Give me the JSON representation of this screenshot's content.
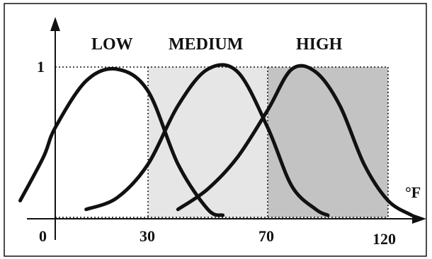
{
  "chart_data": {
    "type": "line",
    "title": "",
    "xlabel": "",
    "ylabel": "",
    "x_unit": "°F",
    "x_ticks": [
      "0",
      "30",
      "70",
      "120"
    ],
    "y_ticks": [
      "1"
    ],
    "category_labels": [
      "LOW",
      "MEDIUM",
      "HIGH"
    ],
    "region_boundaries": [
      30,
      70,
      120
    ],
    "series": [
      {
        "x": [
          -15,
          -5,
          0,
          10,
          20,
          30,
          40,
          50,
          55
        ],
        "y": [
          0.1,
          0.4,
          0.6,
          0.92,
          1.0,
          0.85,
          0.35,
          0.04,
          0.0
        ]
      },
      {
        "x": [
          10,
          20,
          30,
          40,
          50,
          60,
          70,
          80,
          90,
          95
        ],
        "y": [
          0.04,
          0.12,
          0.35,
          0.75,
          1.0,
          0.98,
          0.6,
          0.2,
          0.04,
          0.0
        ]
      },
      {
        "x": [
          40,
          50,
          60,
          70,
          80,
          90,
          100,
          110,
          120,
          130
        ],
        "y": [
          0.04,
          0.18,
          0.4,
          0.72,
          1.0,
          0.98,
          0.75,
          0.35,
          0.1,
          0.0
        ]
      }
    ]
  }
}
